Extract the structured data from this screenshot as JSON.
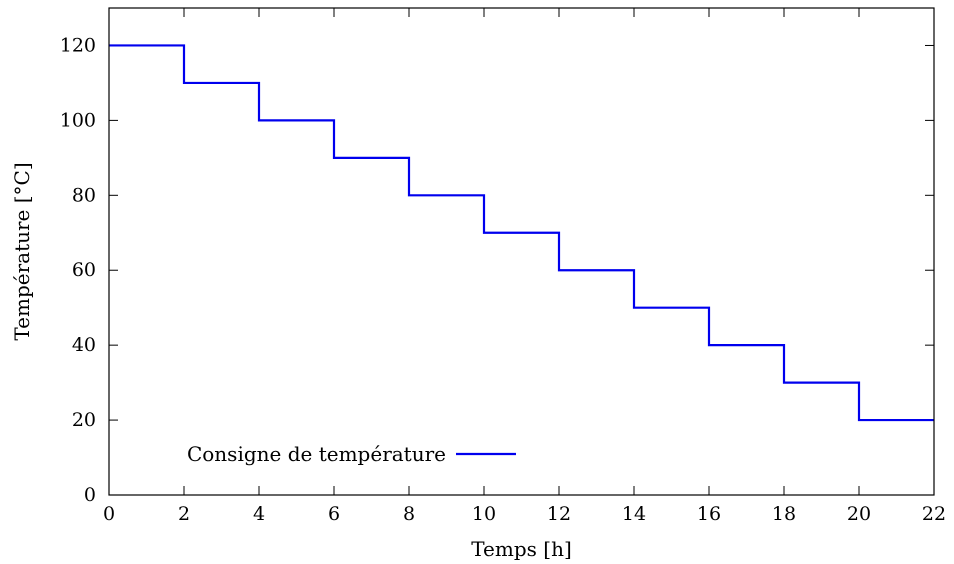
{
  "chart_data": {
    "type": "line",
    "xlabel": "Temps [h]",
    "ylabel": "Température [°C]",
    "xlim": [
      0,
      22
    ],
    "ylim": [
      0,
      130
    ],
    "x_ticks": [
      0,
      2,
      4,
      6,
      8,
      10,
      12,
      14,
      16,
      18,
      20,
      22
    ],
    "y_ticks": [
      0,
      20,
      40,
      60,
      80,
      100,
      120
    ],
    "grid": false,
    "legend_position": "bottom-left",
    "series": [
      {
        "name": "Consigne de température",
        "color": "#0000ee",
        "step": "post",
        "x": [
          0,
          2,
          4,
          6,
          8,
          10,
          12,
          14,
          16,
          18,
          20,
          22
        ],
        "y": [
          120,
          110,
          100,
          90,
          80,
          70,
          60,
          50,
          40,
          30,
          20,
          20
        ]
      }
    ]
  }
}
